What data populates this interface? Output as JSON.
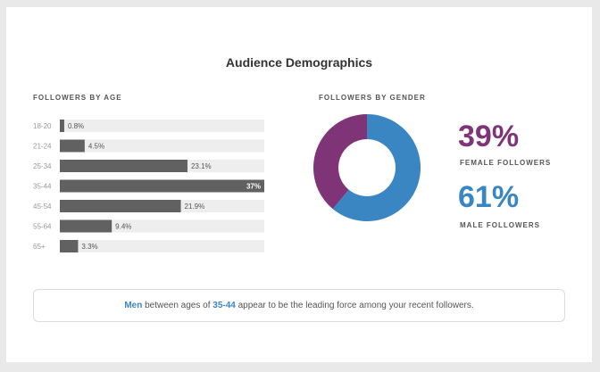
{
  "title": "Audience Demographics",
  "age_section_label": "FOLLOWERS BY AGE",
  "gender_section_label": "FOLLOWERS BY GENDER",
  "gender": {
    "female_pct": "39%",
    "female_caption": "FEMALE FOLLOWERS",
    "male_pct": "61%",
    "male_caption": "MALE FOLLOWERS"
  },
  "insight": {
    "prefix_highlight": "Men",
    "middle": " between ages of ",
    "age_highlight": "35-44",
    "suffix": " appear to be the leading force among your recent followers."
  },
  "colors": {
    "bar": "#616161",
    "bar_track": "#eeeeee",
    "female": "#7f3478",
    "male": "#3a86c2"
  },
  "chart_data": [
    {
      "type": "bar",
      "orientation": "horizontal",
      "categories": [
        "18-20",
        "21-24",
        "25-34",
        "35-44",
        "45-54",
        "55-64",
        "65+"
      ],
      "values": [
        0.8,
        4.5,
        23.1,
        37,
        21.9,
        9.4,
        3.3
      ],
      "value_labels": [
        "0.8%",
        "4.5%",
        "23.1%",
        "37%",
        "21.9%",
        "9.4%",
        "3.3%"
      ],
      "xlim": [
        0,
        37
      ],
      "grid": false
    },
    {
      "type": "pie",
      "style": "donut",
      "categories": [
        "Female",
        "Male"
      ],
      "values": [
        39,
        61
      ]
    }
  ]
}
